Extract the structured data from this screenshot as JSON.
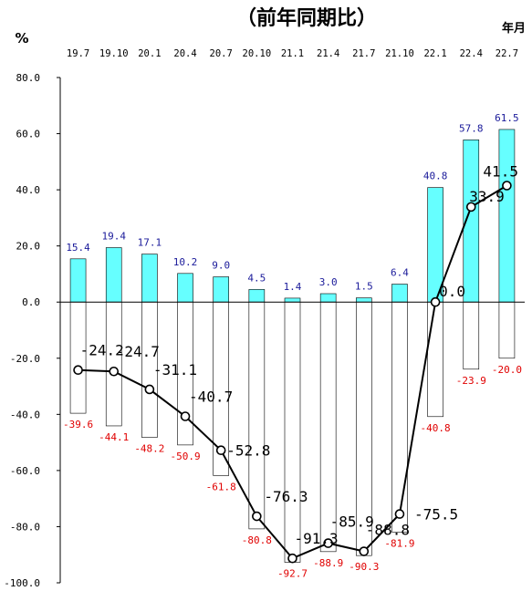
{
  "chart_data": {
    "type": "bar",
    "title": "（前年同期比）",
    "ylabel": "%",
    "xlabel": "年月",
    "ylim": [
      -100,
      80
    ],
    "yticks": [
      80,
      60,
      40,
      20,
      0,
      -20,
      -40,
      -60,
      -80,
      -100
    ],
    "ytick_labels": [
      "80.0",
      "60.0",
      "40.0",
      "20.0",
      "0.0",
      "-20.0",
      "-40.0",
      "-60.0",
      "-80.0",
      "-100.0"
    ],
    "categories": [
      "19.7",
      "19.10",
      "20.1",
      "20.4",
      "20.7",
      "20.10",
      "21.1",
      "21.4",
      "21.7",
      "21.10",
      "22.1",
      "22.4",
      "22.7"
    ],
    "series": [
      {
        "type": "bar",
        "color": "#66ffff",
        "values": [
          15.4,
          19.4,
          17.1,
          10.2,
          9.0,
          4.5,
          1.4,
          3.0,
          1.5,
          6.4,
          40.8,
          57.8,
          61.5
        ],
        "labels": [
          "15.4",
          "19.4",
          "17.1",
          "10.2",
          "9.0",
          "4.5",
          "1.4",
          "3.0",
          "1.5",
          "6.4",
          "40.8",
          "57.8",
          "61.5"
        ]
      },
      {
        "type": "bar",
        "color": "#ffffff",
        "values": [
          -39.6,
          -44.1,
          -48.2,
          -50.9,
          -61.8,
          -80.8,
          -92.7,
          -88.9,
          -90.3,
          -81.9,
          -40.8,
          -23.9,
          -20.0
        ],
        "labels": [
          "-39.6",
          "-44.1",
          "-48.2",
          "-50.9",
          "-61.8",
          "-80.8",
          "-92.7",
          "-88.9",
          "-90.3",
          "-81.9",
          "-40.8",
          "-23.9",
          "-20.0"
        ]
      },
      {
        "type": "line",
        "color": "#000000",
        "values": [
          -24.2,
          -24.7,
          -31.1,
          -40.7,
          -52.8,
          -76.3,
          -91.3,
          -85.9,
          -88.8,
          -75.5,
          0.0,
          33.9,
          41.5
        ],
        "labels": [
          "-24.2",
          "-24.7",
          "-31.1",
          "-40.7",
          "-52.8",
          "-76.3",
          "-91.3",
          "-85.9",
          "-88.8",
          "-75.5",
          "0.0",
          "33.9",
          "41.5"
        ]
      }
    ],
    "grid": false,
    "legend": "none"
  }
}
